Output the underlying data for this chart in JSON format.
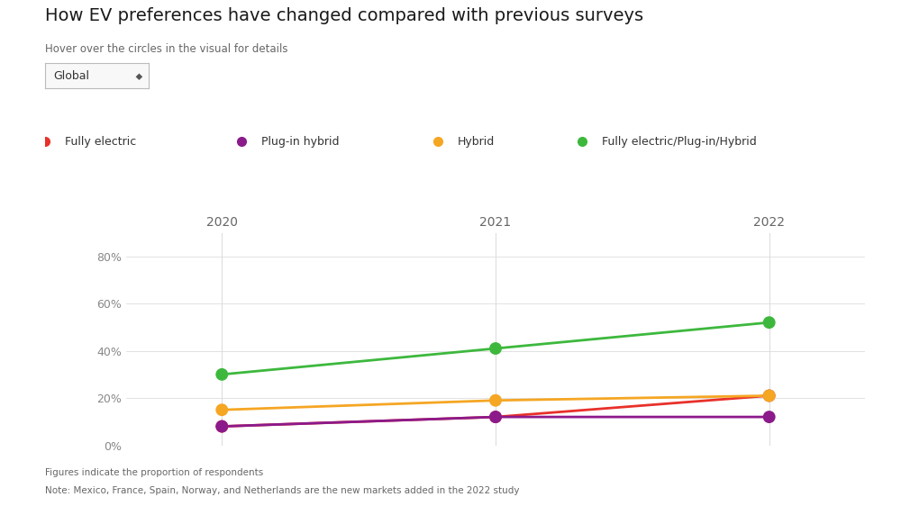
{
  "title": "How EV preferences have changed compared with previous surveys",
  "subtitle": "Hover over the circles in the visual for details",
  "dropdown_label": "Global",
  "footnote1": "Figures indicate the proportion of respondents",
  "footnote2": "Note: Mexico, France, Spain, Norway, and Netherlands are the new markets added in the 2022 study",
  "years": [
    2020,
    2021,
    2022
  ],
  "x_positions": [
    0,
    1,
    2
  ],
  "series": [
    {
      "name": "Fully electric",
      "color": "#e8312a",
      "values": [
        0.08,
        0.12,
        0.21
      ]
    },
    {
      "name": "Plug-in hybrid",
      "color": "#8b1a8b",
      "values": [
        0.08,
        0.12,
        0.12
      ]
    },
    {
      "name": "Hybrid",
      "color": "#f5a623",
      "values": [
        0.15,
        0.19,
        0.21
      ]
    },
    {
      "name": "Fully electric/Plug-in/Hybrid",
      "color": "#3db83d",
      "values": [
        0.3,
        0.41,
        0.52
      ]
    }
  ],
  "ylim": [
    0,
    0.9
  ],
  "yticks": [
    0.0,
    0.2,
    0.4,
    0.6,
    0.8
  ],
  "ytick_labels": [
    "0%",
    "20%",
    "40%",
    "60%",
    "80%"
  ],
  "background_color": "#ffffff",
  "grid_color": "#dddddd",
  "title_fontsize": 14,
  "subtitle_fontsize": 8.5,
  "legend_fontsize": 9,
  "footnote_fontsize": 7.5,
  "year_fontsize": 10,
  "ytick_fontsize": 9,
  "marker_size": 10,
  "line_width": 2.0,
  "xlim": [
    -0.35,
    2.35
  ]
}
